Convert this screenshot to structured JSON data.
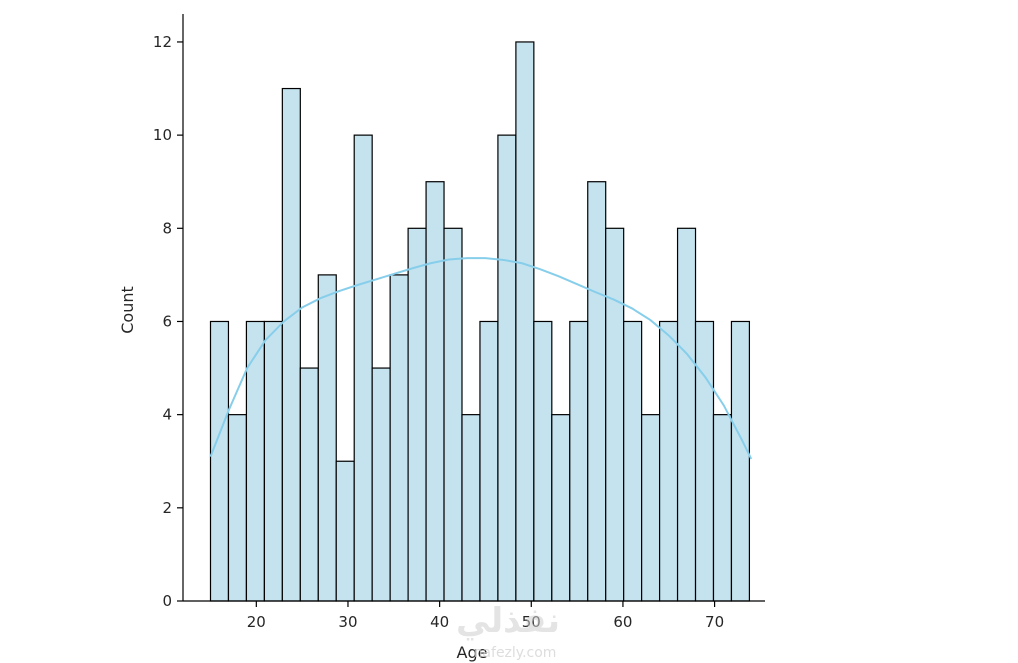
{
  "chart_data": {
    "type": "bar",
    "subtype": "histogram",
    "xlabel": "Age",
    "ylabel": "Count",
    "xlim": [
      12,
      75.5
    ],
    "ylim": [
      0,
      12.6
    ],
    "x_ticks": [
      20,
      30,
      40,
      50,
      60,
      70
    ],
    "y_ticks": [
      0,
      2,
      4,
      6,
      8,
      10,
      12
    ],
    "bin_start": 15,
    "bin_width": 1.96,
    "bins": [
      {
        "start": 15.0,
        "count": 6
      },
      {
        "start": 16.96,
        "count": 4
      },
      {
        "start": 18.92,
        "count": 6
      },
      {
        "start": 20.88,
        "count": 6
      },
      {
        "start": 22.84,
        "count": 11
      },
      {
        "start": 24.8,
        "count": 5
      },
      {
        "start": 26.76,
        "count": 7
      },
      {
        "start": 28.72,
        "count": 3
      },
      {
        "start": 30.68,
        "count": 10
      },
      {
        "start": 32.64,
        "count": 5
      },
      {
        "start": 34.6,
        "count": 7
      },
      {
        "start": 36.56,
        "count": 8
      },
      {
        "start": 38.52,
        "count": 9
      },
      {
        "start": 40.48,
        "count": 8
      },
      {
        "start": 42.44,
        "count": 4
      },
      {
        "start": 44.4,
        "count": 6
      },
      {
        "start": 46.36,
        "count": 10
      },
      {
        "start": 48.32,
        "count": 12
      },
      {
        "start": 50.28,
        "count": 6
      },
      {
        "start": 52.24,
        "count": 4
      },
      {
        "start": 54.2,
        "count": 6
      },
      {
        "start": 56.16,
        "count": 9
      },
      {
        "start": 58.12,
        "count": 8
      },
      {
        "start": 60.08,
        "count": 6
      },
      {
        "start": 62.04,
        "count": 4
      },
      {
        "start": 64.0,
        "count": 6
      },
      {
        "start": 65.96,
        "count": 8
      },
      {
        "start": 67.92,
        "count": 6
      },
      {
        "start": 69.88,
        "count": 4
      },
      {
        "start": 71.84,
        "count": 6
      }
    ],
    "kde": {
      "x": [
        15,
        17,
        19,
        21,
        23,
        25,
        27,
        29,
        31,
        33,
        35,
        37,
        39,
        41,
        43,
        45,
        47,
        49,
        51,
        53,
        55,
        57,
        59,
        61,
        63,
        65,
        67,
        69,
        71,
        73,
        74
      ],
      "y": [
        3.1,
        4.1,
        5.0,
        5.6,
        6.0,
        6.3,
        6.5,
        6.65,
        6.78,
        6.9,
        7.02,
        7.14,
        7.25,
        7.33,
        7.36,
        7.36,
        7.32,
        7.25,
        7.12,
        6.97,
        6.8,
        6.63,
        6.47,
        6.28,
        6.03,
        5.7,
        5.3,
        4.8,
        4.2,
        3.45,
        3.05
      ]
    },
    "grid": false,
    "colors": {
      "bar_fill": "#c4e3ef",
      "bar_edge": "#000000",
      "kde_line": "#87ceeb",
      "axis": "#000000"
    }
  },
  "watermark": {
    "arabic": "نفذلي",
    "latin": "nafezly.com"
  }
}
